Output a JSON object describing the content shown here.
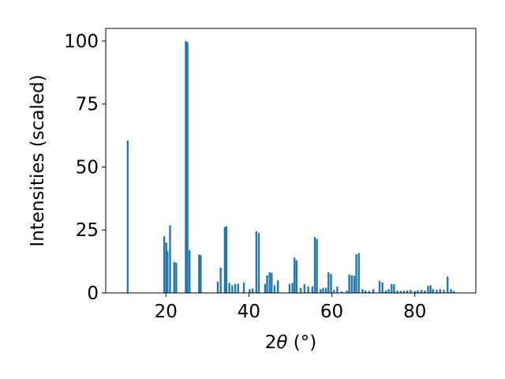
{
  "chart_data": {
    "type": "bar",
    "xlabel_main": "2",
    "xlabel_theta": "θ",
    "xlabel_unit": " (°)",
    "ylabel": "Intensities (scaled)",
    "xlim": [
      5.5,
      94.7
    ],
    "ylim": [
      0,
      105
    ],
    "xticks": [
      20,
      40,
      60,
      80
    ],
    "yticks": [
      0,
      25,
      50,
      75,
      100
    ],
    "grid": false,
    "bar_width_deg": 0.45,
    "bar_color": "#1f77b4",
    "points": [
      [
        10.8,
        60.5
      ],
      [
        19.6,
        22.5
      ],
      [
        20.1,
        20.0
      ],
      [
        20.4,
        16.5
      ],
      [
        21.0,
        26.8
      ],
      [
        22.0,
        12.3
      ],
      [
        22.5,
        12.0
      ],
      [
        24.8,
        100.0
      ],
      [
        25.2,
        99.5
      ],
      [
        25.7,
        17.0
      ],
      [
        28.0,
        15.2
      ],
      [
        28.4,
        15.0
      ],
      [
        32.5,
        4.5
      ],
      [
        33.2,
        10.0
      ],
      [
        34.2,
        26.2
      ],
      [
        34.6,
        26.5
      ],
      [
        35.3,
        4.0
      ],
      [
        36.0,
        3.0
      ],
      [
        36.7,
        3.6
      ],
      [
        37.4,
        3.6
      ],
      [
        38.8,
        4.2
      ],
      [
        40.2,
        1.5
      ],
      [
        40.9,
        1.8
      ],
      [
        41.8,
        24.5
      ],
      [
        42.4,
        23.8
      ],
      [
        43.9,
        3.6
      ],
      [
        44.4,
        7.0
      ],
      [
        45.0,
        8.2
      ],
      [
        45.5,
        8.0
      ],
      [
        46.2,
        3.0
      ],
      [
        47.0,
        5.0
      ],
      [
        49.8,
        3.6
      ],
      [
        50.5,
        4.0
      ],
      [
        51.0,
        14.0
      ],
      [
        51.5,
        13.0
      ],
      [
        52.5,
        2.0
      ],
      [
        53.4,
        3.5
      ],
      [
        54.3,
        2.6
      ],
      [
        55.3,
        2.6
      ],
      [
        55.9,
        22.2
      ],
      [
        56.4,
        21.5
      ],
      [
        57.3,
        1.5
      ],
      [
        57.9,
        2.0
      ],
      [
        58.6,
        2.0
      ],
      [
        59.2,
        8.2
      ],
      [
        59.8,
        7.5
      ],
      [
        60.5,
        1.2
      ],
      [
        61.3,
        2.5
      ],
      [
        62.4,
        0.6
      ],
      [
        63.6,
        1.0
      ],
      [
        64.2,
        7.3
      ],
      [
        64.8,
        7.0
      ],
      [
        65.4,
        6.8
      ],
      [
        65.9,
        15.3
      ],
      [
        66.5,
        15.8
      ],
      [
        67.4,
        1.5
      ],
      [
        68.1,
        1.0
      ],
      [
        69.0,
        0.8
      ],
      [
        70.0,
        1.5
      ],
      [
        71.5,
        4.8
      ],
      [
        72.2,
        4.2
      ],
      [
        73.0,
        1.0
      ],
      [
        73.7,
        1.5
      ],
      [
        74.4,
        3.5
      ],
      [
        75.0,
        3.5
      ],
      [
        75.8,
        1.0
      ],
      [
        76.6,
        0.8
      ],
      [
        77.4,
        0.9
      ],
      [
        78.2,
        1.0
      ],
      [
        79.0,
        1.2
      ],
      [
        80.0,
        0.8
      ],
      [
        80.7,
        1.0
      ],
      [
        81.6,
        1.2
      ],
      [
        82.4,
        1.0
      ],
      [
        83.2,
        2.8
      ],
      [
        83.8,
        3.0
      ],
      [
        84.4,
        1.5
      ],
      [
        85.3,
        1.2
      ],
      [
        86.1,
        1.5
      ],
      [
        87.0,
        1.2
      ],
      [
        87.9,
        6.5
      ],
      [
        88.7,
        1.5
      ],
      [
        89.4,
        0.8
      ]
    ]
  }
}
